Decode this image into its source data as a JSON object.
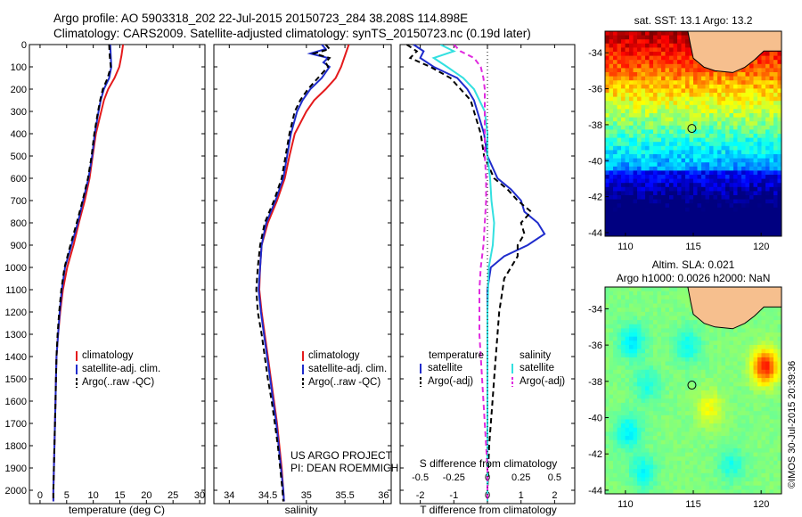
{
  "header": {
    "line1": "Argo profile: AO 5903318_202 22-Jul-2015 20150723_284 38.208S 114.898E",
    "line2": "Climatology: CARS2009. Satellite-adjusted climatology: synTS_20150723.nc (0.19d later)"
  },
  "colors": {
    "climatology": "#e41a1c",
    "satellite": "#1f2ccc",
    "argo": "#000000",
    "sal_satellite": "#33e0e0",
    "sal_argo": "#e02adf",
    "land": "#f6bf8e"
  },
  "chart_data": [
    {
      "type": "line",
      "title": "",
      "xlabel": "temperature (deg C)",
      "ylabel": "",
      "xlim": [
        -2,
        31
      ],
      "ylim": [
        2060,
        0
      ],
      "x_ticks": [
        "0",
        "5",
        "10",
        "15",
        "20",
        "25",
        "30"
      ],
      "y_ticks": [
        "0",
        "100",
        "200",
        "300",
        "400",
        "500",
        "600",
        "700",
        "800",
        "900",
        "1000",
        "1100",
        "1200",
        "1300",
        "1400",
        "1500",
        "1600",
        "1700",
        "1800",
        "1900",
        "2000"
      ],
      "legend_position": "lower-center",
      "legend": [
        "climatology",
        "satellite-adj. clim.",
        "Argo(..raw -QC)"
      ],
      "series": [
        {
          "name": "climatology",
          "style": "solid",
          "depth": [
            0,
            50,
            100,
            150,
            200,
            250,
            300,
            400,
            500,
            600,
            700,
            800,
            900,
            1000,
            1100,
            1200,
            1300,
            1400,
            1500,
            1600,
            1700,
            1800,
            1900,
            2000,
            2050
          ],
          "values": [
            15.6,
            15.3,
            14.9,
            14.0,
            12.8,
            12.0,
            11.5,
            10.5,
            9.9,
            9.3,
            8.4,
            7.3,
            6.3,
            5.1,
            4.3,
            3.8,
            3.4,
            3.1,
            3.0,
            2.9,
            2.8,
            2.7,
            2.6,
            2.5,
            2.5
          ]
        },
        {
          "name": "satellite-adj. clim.",
          "style": "solid",
          "depth": [
            0,
            50,
            100,
            150,
            200,
            250,
            300,
            400,
            500,
            600,
            700,
            800,
            900,
            1000,
            1100,
            1200,
            1300,
            1400,
            1500,
            1600,
            1700,
            1800,
            1900,
            2000,
            2050
          ],
          "values": [
            13.2,
            13.3,
            13.4,
            13.0,
            12.0,
            11.4,
            11.0,
            10.3,
            9.8,
            9.1,
            8.1,
            7.1,
            5.9,
            4.7,
            4.1,
            3.7,
            3.4,
            3.1,
            3.0,
            2.9,
            2.8,
            2.7,
            2.6,
            2.5,
            2.5
          ]
        },
        {
          "name": "Argo(..raw -QC)",
          "style": "dashed",
          "depth": [
            0,
            50,
            100,
            150,
            200,
            250,
            300,
            400,
            500,
            600,
            700,
            800,
            900,
            1000,
            1100,
            1200,
            1300,
            1400,
            1500,
            1600,
            1700,
            1800,
            1900,
            2000,
            2050
          ],
          "values": [
            13.0,
            13.1,
            13.3,
            12.7,
            11.8,
            11.3,
            10.9,
            10.2,
            9.7,
            9.0,
            8.0,
            6.9,
            5.7,
            4.6,
            4.0,
            3.6,
            3.3,
            3.1,
            3.0,
            2.9,
            2.8,
            2.7,
            2.6,
            2.5,
            2.5
          ]
        }
      ]
    },
    {
      "type": "line",
      "title": "",
      "xlabel": "salinity",
      "ylabel": "",
      "xlim": [
        33.8,
        36.1
      ],
      "ylim": [
        2060,
        0
      ],
      "x_ticks": [
        "34",
        "34.5",
        "35",
        "35.5",
        "36"
      ],
      "legend_position": "lower-center",
      "legend": [
        "climatology",
        "satellite-adj. clim.",
        "Argo(..raw -QC)"
      ],
      "annotation": [
        "US ARGO PROJECT",
        "PI: DEAN ROEMMICH"
      ],
      "series": [
        {
          "name": "climatology",
          "style": "solid",
          "depth": [
            0,
            50,
            100,
            150,
            200,
            250,
            300,
            400,
            500,
            600,
            700,
            800,
            900,
            1000,
            1100,
            1200,
            1300,
            1400,
            1500,
            1600,
            1700,
            1800,
            1900,
            2000,
            2050
          ],
          "values": [
            35.55,
            35.5,
            35.45,
            35.38,
            35.25,
            35.1,
            35.0,
            34.85,
            34.78,
            34.72,
            34.62,
            34.5,
            34.42,
            34.4,
            34.39,
            34.42,
            34.46,
            34.5,
            34.54,
            34.58,
            34.62,
            34.65,
            34.68,
            34.7,
            34.71
          ]
        },
        {
          "name": "satellite-adj. clim.",
          "style": "solid",
          "depth": [
            0,
            20,
            40,
            60,
            80,
            100,
            150,
            200,
            250,
            300,
            400,
            500,
            600,
            700,
            800,
            900,
            1000,
            1100,
            1200,
            1300,
            1400,
            1500,
            1600,
            1700,
            1800,
            1900,
            2000,
            2050
          ],
          "values": [
            35.2,
            35.25,
            35.05,
            35.28,
            35.22,
            35.3,
            35.2,
            35.05,
            34.95,
            34.88,
            34.8,
            34.75,
            34.7,
            34.6,
            34.48,
            34.42,
            34.4,
            34.38,
            34.41,
            34.45,
            34.49,
            34.53,
            34.57,
            34.61,
            34.64,
            34.67,
            34.7,
            34.71
          ]
        },
        {
          "name": "Argo(..raw -QC)",
          "style": "dashed",
          "depth": [
            0,
            20,
            40,
            60,
            80,
            100,
            150,
            200,
            250,
            300,
            400,
            500,
            600,
            700,
            800,
            900,
            1000,
            1100,
            1200,
            1300,
            1400,
            1500,
            1600,
            1700,
            1800,
            1900,
            2000,
            2050
          ],
          "values": [
            35.25,
            35.3,
            35.1,
            35.3,
            35.25,
            35.28,
            35.15,
            35.02,
            34.92,
            34.85,
            34.78,
            34.73,
            34.68,
            34.58,
            34.46,
            34.4,
            34.37,
            34.35,
            34.37,
            34.42,
            34.46,
            34.5,
            34.55,
            34.59,
            34.63,
            34.66,
            34.69,
            34.7
          ]
        }
      ]
    },
    {
      "type": "line",
      "title": "",
      "xlabel": "T difference from climatology",
      "xlabel_top": "S difference from climatology",
      "ylabel": "",
      "xlim": [
        -2.6,
        2.6
      ],
      "x2lim": [
        -0.65,
        0.65
      ],
      "ylim": [
        2060,
        0
      ],
      "x_ticks": [
        "-2",
        "-1",
        "0",
        "1",
        "2"
      ],
      "x2_ticks": [
        "-0.5",
        "-0.25",
        "0",
        "0.25",
        "0.5"
      ],
      "legend_position": "lower-center",
      "legend_headers": [
        "temperature",
        "salinity"
      ],
      "series": [
        {
          "name": "satellite",
          "group": "temperature",
          "style": "solid",
          "depth": [
            0,
            30,
            60,
            100,
            150,
            200,
            250,
            300,
            400,
            500,
            600,
            650,
            700,
            750,
            800,
            850,
            900,
            950,
            1000,
            1050,
            1100,
            1200,
            1400,
            1600,
            1800,
            2000,
            2050
          ],
          "values": [
            -2.2,
            -1.9,
            -2.0,
            -1.6,
            -0.9,
            -0.6,
            -0.4,
            -0.3,
            -0.1,
            0.0,
            0.3,
            0.7,
            1.0,
            1.1,
            1.5,
            1.7,
            1.2,
            0.5,
            0.1,
            0.05,
            0.0,
            0.0,
            0.0,
            0.0,
            0.0,
            0.0,
            0.0
          ]
        },
        {
          "name": "Argo(-adj)",
          "group": "temperature",
          "style": "dashed",
          "depth": [
            0,
            30,
            60,
            100,
            150,
            200,
            250,
            300,
            400,
            500,
            600,
            650,
            700,
            750,
            800,
            850,
            900,
            950,
            1000,
            1050,
            1100,
            1200,
            1300,
            1400,
            1500,
            1600,
            1700,
            1800,
            2000,
            2050
          ],
          "values": [
            -2.4,
            -2.1,
            -2.3,
            -1.7,
            -1.1,
            -0.8,
            -0.5,
            -0.4,
            -0.2,
            -0.1,
            0.2,
            0.6,
            0.9,
            1.3,
            1.0,
            1.1,
            0.9,
            0.9,
            0.7,
            0.5,
            0.45,
            0.35,
            0.3,
            0.25,
            0.2,
            0.15,
            0.1,
            0.05,
            0.0,
            0.0
          ]
        },
        {
          "name": "satellite",
          "group": "salinity",
          "style": "solid",
          "depth": [
            0,
            30,
            60,
            100,
            150,
            200,
            250,
            300,
            400,
            500,
            600,
            700,
            800,
            900,
            1000,
            1200,
            1400,
            1600,
            1800,
            2000,
            2050
          ],
          "values": [
            -0.35,
            -0.25,
            -0.4,
            -0.3,
            -0.18,
            -0.1,
            -0.06,
            -0.02,
            0.0,
            0.0,
            0.02,
            0.03,
            0.05,
            0.04,
            0.01,
            0.0,
            0.0,
            0.0,
            0.0,
            0.0,
            0.0
          ]
        },
        {
          "name": "Argo(-adj)",
          "group": "salinity",
          "style": "dashed",
          "depth": [
            0,
            30,
            60,
            100,
            150,
            200,
            300,
            400,
            500,
            600,
            700,
            800,
            900,
            1000,
            1100,
            1200,
            1300,
            1400,
            1500,
            1600,
            1700,
            1800,
            1900,
            2000,
            2050
          ],
          "values": [
            -0.25,
            -0.2,
            -0.1,
            -0.05,
            -0.03,
            -0.02,
            -0.02,
            -0.02,
            -0.02,
            -0.01,
            -0.01,
            -0.02,
            -0.03,
            -0.05,
            -0.06,
            -0.06,
            -0.06,
            -0.05,
            -0.04,
            -0.03,
            -0.02,
            -0.01,
            0.0,
            0.0,
            0.0
          ]
        }
      ]
    },
    {
      "type": "heatmap",
      "title": "sat. SST: 13.1 Argo: 13.2",
      "xlim": [
        108.5,
        121.5
      ],
      "ylim": [
        -44.2,
        -32.8
      ],
      "x_ticks": [
        "110",
        "115",
        "120"
      ],
      "y_ticks": [
        "-34",
        "-36",
        "-38",
        "-40",
        "-42",
        "-44"
      ],
      "float_position": {
        "lon": 114.898,
        "lat": -38.208
      }
    },
    {
      "type": "heatmap",
      "title_lines": [
        "Altim. SLA: 0.021",
        "Argo h1000: 0.0026 h2000: NaN"
      ],
      "xlim": [
        108.5,
        121.5
      ],
      "ylim": [
        -44.2,
        -32.8
      ],
      "x_ticks": [
        "110",
        "115",
        "120"
      ],
      "y_ticks": [
        "-34",
        "-36",
        "-38",
        "-40",
        "-42",
        "-44"
      ],
      "float_position": {
        "lon": 114.898,
        "lat": -38.208
      }
    }
  ],
  "footer": {
    "stamp": "©IMOS 30-Jul-2015 20:39:36"
  }
}
